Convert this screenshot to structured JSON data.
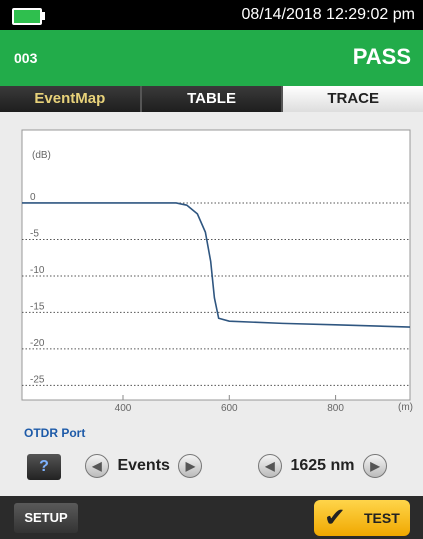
{
  "status": {
    "datetime": "08/14/2018 12:29:02 pm"
  },
  "header": {
    "id": "003",
    "result": "PASS"
  },
  "tabs": [
    "EventMap",
    "TABLE",
    "TRACE"
  ],
  "chart_data": {
    "type": "line",
    "y_label": "(dB)",
    "x_label": "(m)",
    "x": [
      210,
      500,
      520,
      540,
      555,
      565,
      572,
      580,
      600,
      700,
      800,
      940
    ],
    "values": [
      0,
      0,
      -0.3,
      -1.5,
      -4,
      -8,
      -13,
      -15.8,
      -16.2,
      -16.5,
      -16.7,
      -17
    ],
    "color": "#2f5680",
    "xlim": [
      210,
      940
    ],
    "xticks": [
      400,
      600,
      800
    ],
    "ylim": [
      -27,
      10
    ],
    "yticks": [
      0,
      -5,
      -10,
      -15,
      -20,
      -25
    ],
    "grid": true
  },
  "port": "OTDR Port",
  "controls": {
    "help": "?",
    "events": "Events",
    "wavelength": "1625 nm"
  },
  "footer": {
    "setup": "SETUP",
    "test": "TEST"
  }
}
